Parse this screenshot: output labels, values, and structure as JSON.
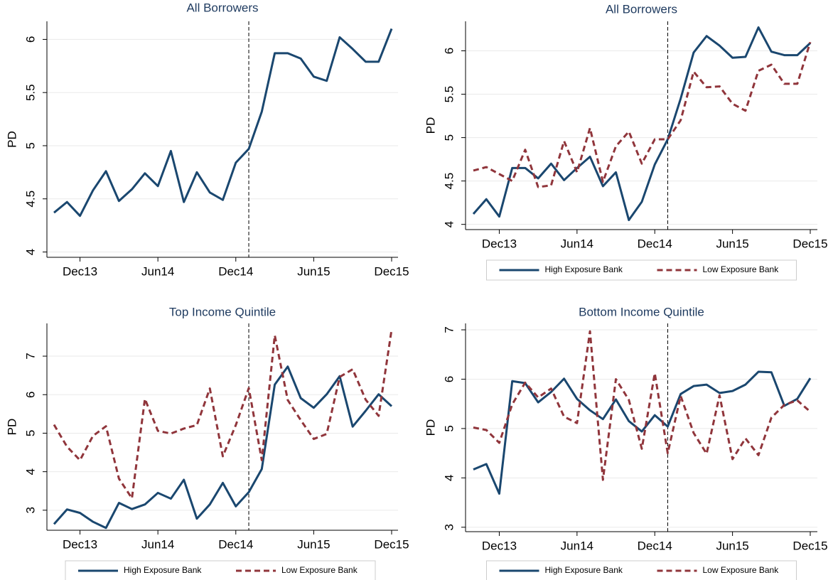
{
  "chart_data": [
    {
      "type": "line",
      "title": "All Borrowers",
      "ylabel": "PD",
      "categories": [
        null,
        null,
        "Dec13",
        null,
        null,
        null,
        null,
        null,
        "Jun14",
        null,
        null,
        null,
        null,
        null,
        "Dec14",
        null,
        null,
        null,
        null,
        null,
        "Jun15",
        null,
        null,
        null,
        null,
        null,
        "Dec15"
      ],
      "values": [
        4.37,
        4.47,
        4.34,
        4.58,
        4.76,
        4.48,
        4.59,
        4.74,
        4.62,
        4.95,
        4.47,
        4.75,
        4.56,
        4.49,
        4.84,
        4.97,
        5.32,
        5.87,
        5.87,
        5.82,
        5.65,
        5.61,
        6.02,
        5.91,
        5.79,
        5.79,
        6.1
      ],
      "color": "#1a476f",
      "ylim": [
        3.95,
        6.17
      ],
      "yticks": [
        4,
        4.5,
        5,
        5.5,
        6
      ],
      "grid": true,
      "reference_line_index": 15
    },
    {
      "type": "line",
      "title": "All Borrowers",
      "ylabel": "PD",
      "categories": [
        null,
        null,
        "Dec13",
        null,
        null,
        null,
        null,
        null,
        "Jun14",
        null,
        null,
        null,
        null,
        null,
        "Dec14",
        null,
        null,
        null,
        null,
        null,
        "Jun15",
        null,
        null,
        null,
        null,
        null,
        "Dec15"
      ],
      "series": [
        {
          "name": "High Exposure Bank",
          "color": "#1a476f",
          "dash": "solid",
          "values": [
            4.12,
            4.29,
            4.09,
            4.65,
            4.65,
            4.53,
            4.7,
            4.51,
            4.65,
            4.78,
            4.44,
            4.6,
            4.05,
            4.26,
            4.69,
            4.98,
            5.45,
            5.98,
            6.17,
            6.06,
            5.92,
            5.93,
            6.27,
            5.99,
            5.95,
            5.95,
            6.09
          ]
        },
        {
          "name": "Low Exposure Bank",
          "color": "#90353b",
          "dash": "dashed",
          "values": [
            4.62,
            4.66,
            4.58,
            4.5,
            4.86,
            4.43,
            4.45,
            4.96,
            4.6,
            5.11,
            4.49,
            4.9,
            5.07,
            4.7,
            4.98,
            4.98,
            5.2,
            5.76,
            5.58,
            5.59,
            5.39,
            5.31,
            5.77,
            5.84,
            5.62,
            5.62,
            6.1
          ]
        }
      ],
      "ylim": [
        3.94,
        6.34
      ],
      "yticks": [
        4,
        4.5,
        5,
        5.5,
        6
      ],
      "grid": true,
      "reference_line_index": 15,
      "legend": "bottom"
    },
    {
      "type": "line",
      "title": "Top Income Quintile",
      "ylabel": "PD",
      "categories": [
        null,
        null,
        "Dec13",
        null,
        null,
        null,
        null,
        null,
        "Jun14",
        null,
        null,
        null,
        null,
        null,
        "Dec14",
        null,
        null,
        null,
        null,
        null,
        "Jun15",
        null,
        null,
        null,
        null,
        null,
        "Dec15"
      ],
      "series": [
        {
          "name": "High Exposure Bank",
          "color": "#1a476f",
          "dash": "solid",
          "values": [
            2.64,
            3.02,
            2.93,
            2.7,
            2.54,
            3.19,
            3.03,
            3.15,
            3.45,
            3.3,
            3.79,
            2.78,
            3.15,
            3.71,
            3.1,
            3.47,
            4.07,
            6.26,
            6.73,
            5.91,
            5.66,
            6.01,
            6.48,
            5.17,
            5.58,
            6.01,
            5.7
          ]
        },
        {
          "name": "Low Exposure Bank",
          "color": "#90353b",
          "dash": "dashed",
          "values": [
            5.22,
            4.65,
            4.3,
            4.93,
            5.18,
            3.82,
            3.31,
            5.89,
            5.06,
            4.99,
            5.12,
            5.21,
            6.16,
            4.4,
            5.21,
            6.17,
            4.3,
            7.54,
            5.86,
            5.34,
            4.85,
            4.98,
            6.46,
            6.66,
            5.87,
            5.45,
            7.69
          ]
        }
      ],
      "ylim": [
        2.48,
        7.85
      ],
      "yticks": [
        3,
        4,
        5,
        6,
        7
      ],
      "grid": true,
      "reference_line_index": 15,
      "legend": "bottom"
    },
    {
      "type": "line",
      "title": "Bottom Income Quintile",
      "ylabel": "PD",
      "categories": [
        null,
        null,
        "Dec13",
        null,
        null,
        null,
        null,
        null,
        "Jun14",
        null,
        null,
        null,
        null,
        null,
        "Dec14",
        null,
        null,
        null,
        null,
        null,
        "Jun15",
        null,
        null,
        null,
        null,
        null,
        "Dec15"
      ],
      "series": [
        {
          "name": "High Exposure Bank",
          "color": "#1a476f",
          "dash": "solid",
          "values": [
            4.17,
            4.28,
            3.68,
            5.96,
            5.92,
            5.53,
            5.74,
            6.01,
            5.6,
            5.37,
            5.19,
            5.59,
            5.15,
            4.94,
            5.27,
            5.04,
            5.7,
            5.86,
            5.89,
            5.72,
            5.76,
            5.89,
            6.15,
            6.14,
            5.46,
            5.6,
            6.02
          ]
        },
        {
          "name": "Low Exposure Bank",
          "color": "#90353b",
          "dash": "dashed",
          "values": [
            5.02,
            4.97,
            4.71,
            5.49,
            5.93,
            5.63,
            5.81,
            5.24,
            5.11,
            6.97,
            3.96,
            6.0,
            5.58,
            4.59,
            6.12,
            4.5,
            5.66,
            4.91,
            4.49,
            5.67,
            4.38,
            4.8,
            4.46,
            5.22,
            5.48,
            5.57,
            5.34
          ]
        }
      ],
      "ylim": [
        2.91,
        7.13
      ],
      "yticks": [
        3,
        4,
        5,
        6,
        7
      ],
      "grid": true,
      "reference_line_index": 15,
      "legend": "bottom"
    }
  ]
}
